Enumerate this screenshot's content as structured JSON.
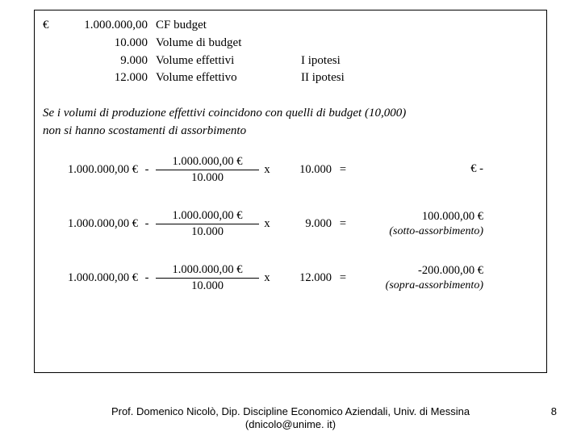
{
  "header": {
    "currency_symbol": "€",
    "rows": [
      {
        "value": "1.000.000,00",
        "label": "CF budget",
        "note": ""
      },
      {
        "value": "10.000",
        "label": "Volume di budget",
        "note": ""
      },
      {
        "value": "9.000",
        "label": "Volume effettivi",
        "note": "I ipotesi"
      },
      {
        "value": "12.000",
        "label": "Volume effettivo",
        "note": "II ipotesi"
      }
    ]
  },
  "note_line1": "Se i volumi di produzione effettivi coincidono con quelli di budget (10,000)",
  "note_line2": "non si hanno scostamenti  di assorbimento",
  "formulas": [
    {
      "amount": "1.000.000,00 €",
      "minus": "-",
      "frac_num": "1.000.000,00 €",
      "frac_den": "10.000",
      "times": "x",
      "volume": "10.000",
      "equals": "=",
      "result": "€                        -",
      "result_note": ""
    },
    {
      "amount": "1.000.000,00 €",
      "minus": "-",
      "frac_num": "1.000.000,00 €",
      "frac_den": "10.000",
      "times": "x",
      "volume": "9.000",
      "equals": "=",
      "result": "100.000,00 €",
      "result_note": "(sotto-assorbimento)"
    },
    {
      "amount": "1.000.000,00 €",
      "minus": "-",
      "frac_num": "1.000.000,00 €",
      "frac_den": "10.000",
      "times": "x",
      "volume": "12.000",
      "equals": "=",
      "result": "-200.000,00 €",
      "result_note": "(sopra-assorbimento)"
    }
  ],
  "footer": {
    "credit_line1": "Prof. Domenico Nicolò, Dip. Discipline Economico Aziendali, Univ. di Messina",
    "credit_line2": "(dnicolo@unime. it)",
    "page_number": "8"
  }
}
